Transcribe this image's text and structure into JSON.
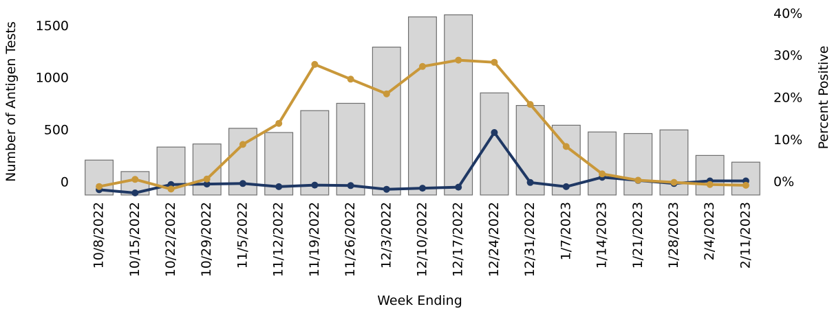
{
  "chart_data": {
    "type": "bar",
    "xlabel": "Week Ending",
    "ylabel": "Number of Antigen Tests",
    "y2label": "Percent Positive",
    "categories": [
      "10/8/2022",
      "10/15/2022",
      "10/22/2022",
      "10/29/2022",
      "11/5/2022",
      "11/12/2022",
      "11/19/2022",
      "11/26/2022",
      "12/3/2022",
      "12/10/2022",
      "12/17/2022",
      "12/24/2022",
      "12/31/2022",
      "1/7/2023",
      "1/14/2023",
      "1/21/2023",
      "1/28/2023",
      "2/4/2023",
      "2/11/2023"
    ],
    "ylim": [
      -80,
      1700
    ],
    "yticks": [
      0,
      500,
      1000,
      1500
    ],
    "y2lim": [
      -0.02,
      0.42
    ],
    "y2ticks": [
      0,
      0.1,
      0.2,
      0.3,
      0.4
    ],
    "y2ticklabels": [
      "0%",
      "10%",
      "20%",
      "30%",
      "40%"
    ],
    "grid": false,
    "legend": "none",
    "series": [
      {
        "kind": "bar",
        "axis": "left",
        "color": "#d6d6d6",
        "edge": "#6e6e6e",
        "values": [
          255,
          145,
          380,
          410,
          560,
          520,
          730,
          800,
          1340,
          1630,
          1650,
          900,
          780,
          590,
          525,
          510,
          545,
          300,
          235
        ]
      },
      {
        "kind": "line",
        "axis": "left",
        "color": "#1f3864",
        "values": [
          -30,
          -60,
          20,
          25,
          30,
          0,
          15,
          10,
          -25,
          -15,
          -5,
          520,
          40,
          0,
          90,
          60,
          30,
          55,
          55
        ]
      },
      {
        "kind": "line",
        "axis": "right",
        "color": "#c9983a",
        "values": [
          0.0,
          0.017,
          -0.006,
          0.018,
          0.1,
          0.15,
          0.29,
          0.255,
          0.22,
          0.285,
          0.3,
          0.295,
          0.195,
          0.095,
          0.03,
          0.015,
          0.01,
          0.005,
          0.003
        ]
      }
    ]
  }
}
